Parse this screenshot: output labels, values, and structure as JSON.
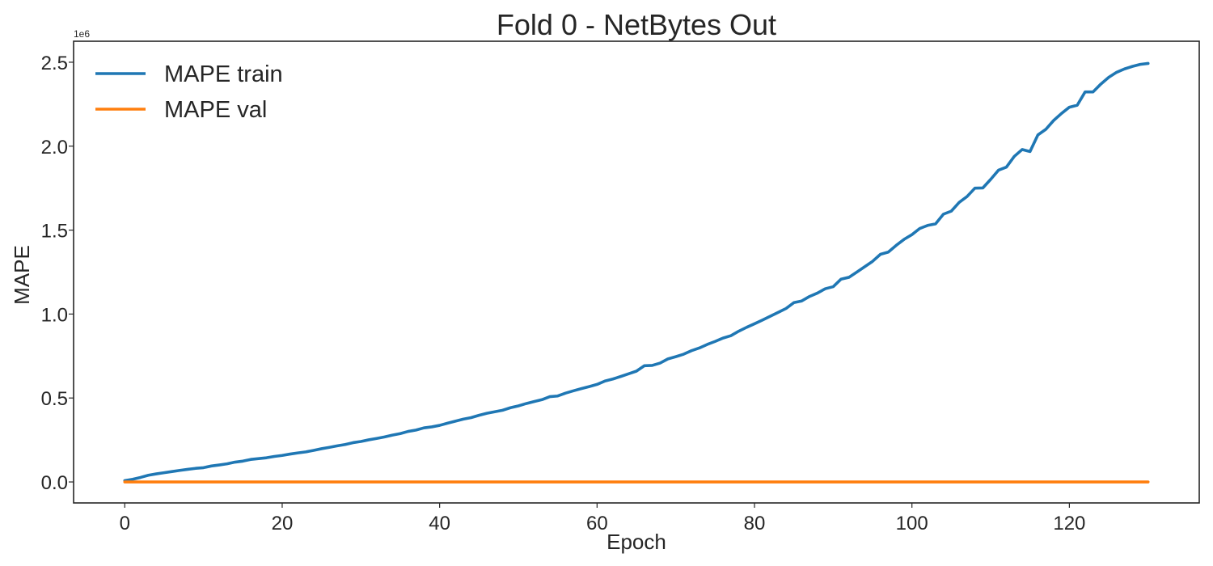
{
  "chart_data": {
    "type": "line",
    "title": "Fold 0 - NetBytes Out",
    "xlabel": "Epoch",
    "ylabel": "MAPE",
    "y_offset_label": "1e6",
    "xlim": [
      -6.5,
      136.5
    ],
    "ylim": [
      -125000,
      2625000
    ],
    "x_ticks": [
      0,
      20,
      40,
      60,
      80,
      100,
      120
    ],
    "x_tick_labels": [
      "0",
      "20",
      "40",
      "60",
      "80",
      "100",
      "120"
    ],
    "y_ticks": [
      0,
      500000,
      1000000,
      1500000,
      2000000,
      2500000
    ],
    "y_tick_labels": [
      "0.0",
      "0.5",
      "1.0",
      "1.5",
      "2.0",
      "2.5"
    ],
    "grid": false,
    "legend_position": "top-left",
    "series": [
      {
        "name": "MAPE train",
        "color": "#1f77b4",
        "x": [
          0,
          1,
          2,
          3,
          4,
          5,
          6,
          7,
          8,
          9,
          10,
          11,
          12,
          13,
          14,
          15,
          16,
          17,
          18,
          19,
          20,
          21,
          22,
          23,
          24,
          25,
          26,
          27,
          28,
          29,
          30,
          31,
          32,
          33,
          34,
          35,
          36,
          37,
          38,
          39,
          40,
          41,
          42,
          43,
          44,
          45,
          46,
          47,
          48,
          49,
          50,
          51,
          52,
          53,
          54,
          55,
          56,
          57,
          58,
          59,
          60,
          61,
          62,
          63,
          64,
          65,
          66,
          67,
          68,
          69,
          70,
          71,
          72,
          73,
          74,
          75,
          76,
          77,
          78,
          79,
          80,
          81,
          82,
          83,
          84,
          85,
          86,
          87,
          88,
          89,
          90,
          91,
          92,
          93,
          94,
          95,
          96,
          97,
          98,
          99,
          100,
          101,
          102,
          103,
          104,
          105,
          106,
          107,
          108,
          109,
          110,
          111,
          112,
          113,
          114,
          115,
          116,
          117,
          118,
          119,
          120,
          121,
          122,
          123,
          124,
          125,
          126,
          127,
          128,
          129,
          130
        ],
        "values": [
          8000,
          16000,
          27000,
          40000,
          48000,
          55000,
          62000,
          69000,
          75000,
          81000,
          85000,
          95000,
          101000,
          108000,
          118000,
          124000,
          134000,
          139000,
          144000,
          152000,
          158000,
          166000,
          173000,
          179000,
          188000,
          198000,
          206000,
          215000,
          223000,
          234000,
          241000,
          251000,
          259000,
          268000,
          279000,
          288000,
          301000,
          309000,
          322000,
          328000,
          337000,
          350000,
          362000,
          374000,
          383000,
          397000,
          409000,
          418000,
          427000,
          442000,
          453000,
          467000,
          479000,
          490000,
          508000,
          512000,
          529000,
          543000,
          556000,
          568000,
          581000,
          601000,
          613000,
          628000,
          644000,
          660000,
          692000,
          694000,
          708000,
          733000,
          746000,
          761000,
          782000,
          798000,
          819000,
          837000,
          857000,
          871000,
          898000,
          921000,
          942000,
          964000,
          987000,
          1010000,
          1033000,
          1068000,
          1078000,
          1105000,
          1125000,
          1151000,
          1163000,
          1208000,
          1219000,
          1250000,
          1282000,
          1314000,
          1356000,
          1369000,
          1409000,
          1445000,
          1473000,
          1510000,
          1528000,
          1537000,
          1595000,
          1613000,
          1665000,
          1700000,
          1750000,
          1751000,
          1802000,
          1857000,
          1875000,
          1939000,
          1980000,
          1968000,
          2067000,
          2100000,
          2153000,
          2195000,
          2232000,
          2244000,
          2323000,
          2323000,
          2370000,
          2410000,
          2440000,
          2460000,
          2475000,
          2487000,
          2493000
        ]
      },
      {
        "name": "MAPE val",
        "color": "#ff7f0e",
        "x": [
          0,
          130
        ],
        "values": [
          0,
          0
        ]
      }
    ]
  }
}
